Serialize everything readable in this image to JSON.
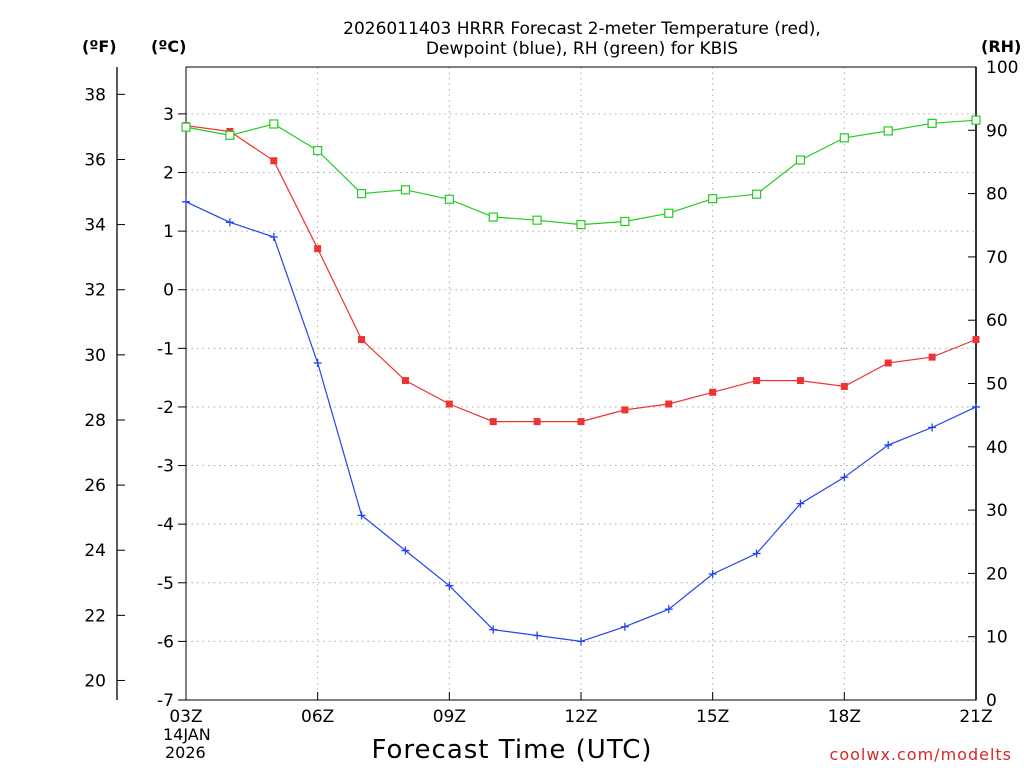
{
  "chart_data": {
    "type": "line",
    "title": "2026011403 HRRR Forecast 2-meter Temperature (red),",
    "subtitle": "Dewpoint (blue), RH (green) for KBIS",
    "xlabel": "Forecast Time (UTC)",
    "left_unit_f": "(ºF)",
    "left_unit_c": "(ºC)",
    "right_unit": "(RH)",
    "date_label": [
      "14JAN",
      "2026"
    ],
    "credit": "coolwx.com/modelts",
    "x_hours": [
      0,
      1,
      2,
      3,
      4,
      5,
      6,
      7,
      8,
      9,
      10,
      11,
      12,
      13,
      14,
      15,
      16,
      17,
      18
    ],
    "x_tick_hours": [
      0,
      3,
      6,
      9,
      12,
      15,
      18
    ],
    "x_tick_labels": [
      "03Z",
      "06Z",
      "09Z",
      "12Z",
      "15Z",
      "18Z",
      "21Z"
    ],
    "ylim_c": [
      -7,
      3.8
    ],
    "ylim_rh": [
      0,
      100
    ],
    "y_ticks_c": [
      -7,
      -6,
      -5,
      -4,
      -3,
      -2,
      -1,
      0,
      1,
      2,
      3
    ],
    "y_ticks_f": [
      20,
      22,
      24,
      26,
      28,
      30,
      32,
      34,
      36,
      38
    ],
    "y_ticks_rh": [
      0,
      10,
      20,
      30,
      40,
      50,
      60,
      70,
      80,
      90,
      100
    ],
    "series": [
      {
        "name": "Temperature",
        "color": "#ee3333",
        "marker": "filled-square",
        "axis": "celsius",
        "values": [
          2.8,
          2.7,
          2.2,
          0.7,
          -0.85,
          -1.55,
          -1.95,
          -2.25,
          -2.25,
          -2.25,
          -2.05,
          -1.95,
          -1.75,
          -1.55,
          -1.55,
          -1.65,
          -1.25,
          -1.15,
          -0.85
        ]
      },
      {
        "name": "Dewpoint",
        "color": "#2244ee",
        "marker": "plus",
        "axis": "celsius",
        "values": [
          1.5,
          1.15,
          0.9,
          -1.25,
          -3.85,
          -4.45,
          -5.05,
          -5.8,
          -5.9,
          -6.0,
          -5.75,
          -5.45,
          -4.85,
          -4.5,
          -3.65,
          -3.2,
          -2.65,
          -2.35,
          -2.0
        ]
      },
      {
        "name": "RH",
        "color": "#22cc22",
        "marker": "open-square",
        "axis": "rh",
        "values": [
          90.5,
          89.2,
          91.0,
          86.8,
          80.0,
          80.6,
          79.1,
          76.3,
          75.8,
          75.1,
          75.6,
          76.9,
          79.2,
          79.9,
          85.3,
          88.8,
          89.9,
          91.1,
          91.6
        ]
      }
    ]
  }
}
